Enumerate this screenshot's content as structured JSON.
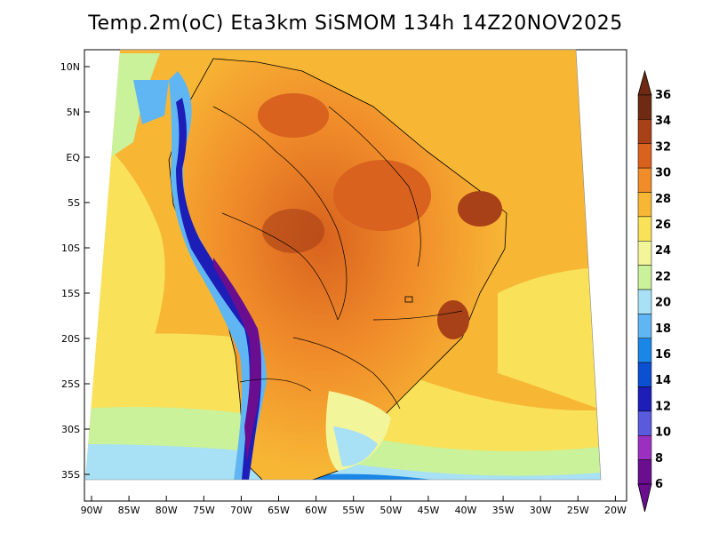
{
  "title": "Temp.2m(oC) Eta3km SiSMOM 134h 14Z20NOV2025",
  "map": {
    "lat_labels": [
      "10N",
      "5N",
      "EQ",
      "5S",
      "10S",
      "15S",
      "20S",
      "25S",
      "30S",
      "35S"
    ],
    "lon_labels": [
      "90W",
      "85W",
      "80W",
      "75W",
      "70W",
      "65W",
      "60W",
      "55W",
      "50W",
      "45W",
      "40W",
      "35W",
      "30W",
      "25W",
      "20W"
    ]
  },
  "colorbar": {
    "labels": [
      "6",
      "8",
      "10",
      "12",
      "14",
      "16",
      "18",
      "20",
      "22",
      "24",
      "26",
      "28",
      "30",
      "32",
      "34",
      "36"
    ],
    "colors": [
      "#6a0d8f",
      "#9b30c0",
      "#5a5adc",
      "#1d1db8",
      "#0a50d0",
      "#1a86e6",
      "#5fb6f2",
      "#a8e0f5",
      "#c9f29a",
      "#f2f59a",
      "#f9e15a",
      "#f7b735",
      "#f08c2a",
      "#d8621e",
      "#a84018",
      "#6e2a12"
    ],
    "unit": "oC"
  }
}
